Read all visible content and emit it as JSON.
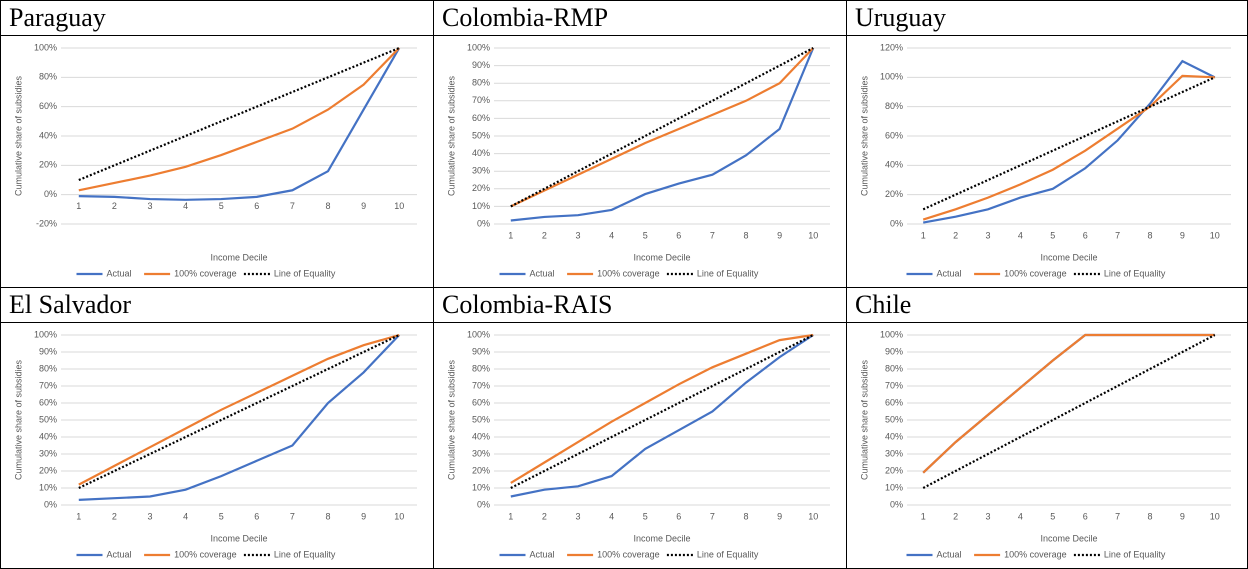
{
  "chart_data": [
    {
      "type": "line",
      "title": "Paraguay",
      "y_label": "Cumulative share of subsidies",
      "x_label": "Income Decile",
      "categories": [
        "1",
        "2",
        "3",
        "4",
        "5",
        "6",
        "7",
        "8",
        "9",
        "10"
      ],
      "series": [
        {
          "name": "Actual",
          "color": "#4472c4",
          "line_style": "solid",
          "values": [
            -1,
            -1.5,
            -3,
            -3.5,
            -3,
            -1.5,
            3,
            16,
            58,
            100
          ]
        },
        {
          "name": "100% coverage",
          "color": "#ed7d31",
          "line_style": "solid",
          "values": [
            3,
            8,
            13,
            19,
            27,
            36,
            45,
            58,
            75,
            100
          ]
        },
        {
          "name": "Line of Equality",
          "color": "#000000",
          "line_style": "dotted",
          "values": [
            10,
            20,
            30,
            40,
            50,
            60,
            70,
            80,
            90,
            100
          ]
        }
      ],
      "ylim": [
        -20,
        100
      ],
      "yticks": [
        {
          "value": -20,
          "label": "-20%"
        },
        {
          "value": 0,
          "label": "0%"
        },
        {
          "value": 20,
          "label": "20%"
        },
        {
          "value": 40,
          "label": "40%"
        },
        {
          "value": 60,
          "label": "60%"
        },
        {
          "value": 80,
          "label": "80%"
        },
        {
          "value": 100,
          "label": "100%"
        }
      ],
      "grid": true,
      "legend": "bottom"
    },
    {
      "type": "line",
      "title": "Colombia-RMP",
      "y_label": "Cumulative share of subsidies",
      "x_label": "Income Decile",
      "categories": [
        "1",
        "2",
        "3",
        "4",
        "5",
        "6",
        "7",
        "8",
        "9",
        "10"
      ],
      "series": [
        {
          "name": "Actual",
          "color": "#4472c4",
          "line_style": "solid",
          "values": [
            2,
            4,
            5,
            8,
            17,
            23,
            28,
            39,
            54,
            100
          ]
        },
        {
          "name": "100% coverage",
          "color": "#ed7d31",
          "line_style": "solid",
          "values": [
            10,
            19,
            28,
            37,
            46,
            54,
            62,
            70,
            80,
            100
          ]
        },
        {
          "name": "Line of Equality",
          "color": "#000000",
          "line_style": "dotted",
          "values": [
            10,
            20,
            30,
            40,
            50,
            60,
            70,
            80,
            90,
            100
          ]
        }
      ],
      "ylim": [
        0,
        100
      ],
      "yticks": [
        {
          "value": 0,
          "label": "0%"
        },
        {
          "value": 10,
          "label": "10%"
        },
        {
          "value": 20,
          "label": "20%"
        },
        {
          "value": 30,
          "label": "30%"
        },
        {
          "value": 40,
          "label": "40%"
        },
        {
          "value": 50,
          "label": "50%"
        },
        {
          "value": 60,
          "label": "60%"
        },
        {
          "value": 70,
          "label": "70%"
        },
        {
          "value": 80,
          "label": "80%"
        },
        {
          "value": 90,
          "label": "90%"
        },
        {
          "value": 100,
          "label": "100%"
        }
      ],
      "grid": true,
      "legend": "bottom"
    },
    {
      "type": "line",
      "title": "Uruguay",
      "y_label": "Cumulative share of subsidies",
      "x_label": "Income Decile",
      "categories": [
        "1",
        "2",
        "3",
        "4",
        "5",
        "6",
        "7",
        "8",
        "9",
        "10"
      ],
      "series": [
        {
          "name": "Actual",
          "color": "#4472c4",
          "line_style": "solid",
          "values": [
            1,
            5,
            10,
            18,
            24,
            38,
            57,
            82,
            111,
            100
          ]
        },
        {
          "name": "100% coverage",
          "color": "#ed7d31",
          "line_style": "solid",
          "values": [
            3,
            10,
            18,
            27,
            37,
            50,
            65,
            80,
            101,
            100
          ]
        },
        {
          "name": "Line of Equality",
          "color": "#000000",
          "line_style": "dotted",
          "values": [
            10,
            20,
            30,
            40,
            50,
            60,
            70,
            80,
            90,
            100
          ]
        }
      ],
      "ylim": [
        0,
        120
      ],
      "yticks": [
        {
          "value": 0,
          "label": "0%"
        },
        {
          "value": 20,
          "label": "20%"
        },
        {
          "value": 40,
          "label": "40%"
        },
        {
          "value": 60,
          "label": "60%"
        },
        {
          "value": 80,
          "label": "80%"
        },
        {
          "value": 100,
          "label": "100%"
        },
        {
          "value": 120,
          "label": "120%"
        }
      ],
      "grid": true,
      "legend": "bottom"
    },
    {
      "type": "line",
      "title": "El Salvador",
      "y_label": "Cumulative share of subsidies",
      "x_label": "Income Decile",
      "categories": [
        "1",
        "2",
        "3",
        "4",
        "5",
        "6",
        "7",
        "8",
        "9",
        "10"
      ],
      "series": [
        {
          "name": "Actual",
          "color": "#4472c4",
          "line_style": "solid",
          "values": [
            3,
            4,
            5,
            9,
            17,
            26,
            35,
            60,
            78,
            100
          ]
        },
        {
          "name": "100% coverage",
          "color": "#ed7d31",
          "line_style": "solid",
          "values": [
            12,
            23,
            34,
            45,
            56,
            66,
            76,
            86,
            94,
            100
          ]
        },
        {
          "name": "Line of Equality",
          "color": "#000000",
          "line_style": "dotted",
          "values": [
            10,
            20,
            30,
            40,
            50,
            60,
            70,
            80,
            90,
            100
          ]
        }
      ],
      "ylim": [
        0,
        100
      ],
      "yticks": [
        {
          "value": 0,
          "label": "0%"
        },
        {
          "value": 10,
          "label": "10%"
        },
        {
          "value": 20,
          "label": "20%"
        },
        {
          "value": 30,
          "label": "30%"
        },
        {
          "value": 40,
          "label": "40%"
        },
        {
          "value": 50,
          "label": "50%"
        },
        {
          "value": 60,
          "label": "60%"
        },
        {
          "value": 70,
          "label": "70%"
        },
        {
          "value": 80,
          "label": "80%"
        },
        {
          "value": 90,
          "label": "90%"
        },
        {
          "value": 100,
          "label": "100%"
        }
      ],
      "grid": true,
      "legend": "bottom"
    },
    {
      "type": "line",
      "title": "Colombia-RAIS",
      "y_label": "Cumulative share of subsidies",
      "x_label": "Income Decile",
      "categories": [
        "1",
        "2",
        "3",
        "4",
        "5",
        "6",
        "7",
        "8",
        "9",
        "10"
      ],
      "series": [
        {
          "name": "Actual",
          "color": "#4472c4",
          "line_style": "solid",
          "values": [
            5,
            9,
            11,
            17,
            33,
            44,
            55,
            72,
            87,
            100
          ]
        },
        {
          "name": "100% coverage",
          "color": "#ed7d31",
          "line_style": "solid",
          "values": [
            13,
            25,
            37,
            49,
            60,
            71,
            81,
            89,
            97,
            100
          ]
        },
        {
          "name": "Line of Equality",
          "color": "#000000",
          "line_style": "dotted",
          "values": [
            10,
            20,
            30,
            40,
            50,
            60,
            70,
            80,
            90,
            100
          ]
        }
      ],
      "ylim": [
        0,
        100
      ],
      "yticks": [
        {
          "value": 0,
          "label": "0%"
        },
        {
          "value": 10,
          "label": "10%"
        },
        {
          "value": 20,
          "label": "20%"
        },
        {
          "value": 30,
          "label": "30%"
        },
        {
          "value": 40,
          "label": "40%"
        },
        {
          "value": 50,
          "label": "50%"
        },
        {
          "value": 60,
          "label": "60%"
        },
        {
          "value": 70,
          "label": "70%"
        },
        {
          "value": 80,
          "label": "80%"
        },
        {
          "value": 90,
          "label": "90%"
        },
        {
          "value": 100,
          "label": "100%"
        }
      ],
      "grid": true,
      "legend": "bottom"
    },
    {
      "type": "line",
      "title": "Chile",
      "y_label": "Cumulative share of subsidies",
      "x_label": "Income Decile",
      "categories": [
        "1",
        "2",
        "3",
        "4",
        "5",
        "6",
        "7",
        "8",
        "9",
        "10"
      ],
      "series": [
        {
          "name": "Actual",
          "color": "#4472c4",
          "line_style": "solid",
          "values": [
            19,
            37,
            53,
            69,
            85,
            100,
            100,
            100,
            100,
            100
          ]
        },
        {
          "name": "100% coverage",
          "color": "#ed7d31",
          "line_style": "solid",
          "values": [
            19,
            37,
            53,
            69,
            85,
            100,
            100,
            100,
            100,
            100
          ]
        },
        {
          "name": "Line of Equality",
          "color": "#000000",
          "line_style": "dotted",
          "values": [
            10,
            20,
            30,
            40,
            50,
            60,
            70,
            80,
            90,
            100
          ]
        }
      ],
      "ylim": [
        0,
        100
      ],
      "yticks": [
        {
          "value": 0,
          "label": "0%"
        },
        {
          "value": 10,
          "label": "10%"
        },
        {
          "value": 20,
          "label": "20%"
        },
        {
          "value": 30,
          "label": "30%"
        },
        {
          "value": 40,
          "label": "40%"
        },
        {
          "value": 50,
          "label": "50%"
        },
        {
          "value": 60,
          "label": "60%"
        },
        {
          "value": 70,
          "label": "70%"
        },
        {
          "value": 80,
          "label": "80%"
        },
        {
          "value": 90,
          "label": "90%"
        },
        {
          "value": 100,
          "label": "100%"
        }
      ],
      "grid": true,
      "legend": "bottom"
    }
  ]
}
